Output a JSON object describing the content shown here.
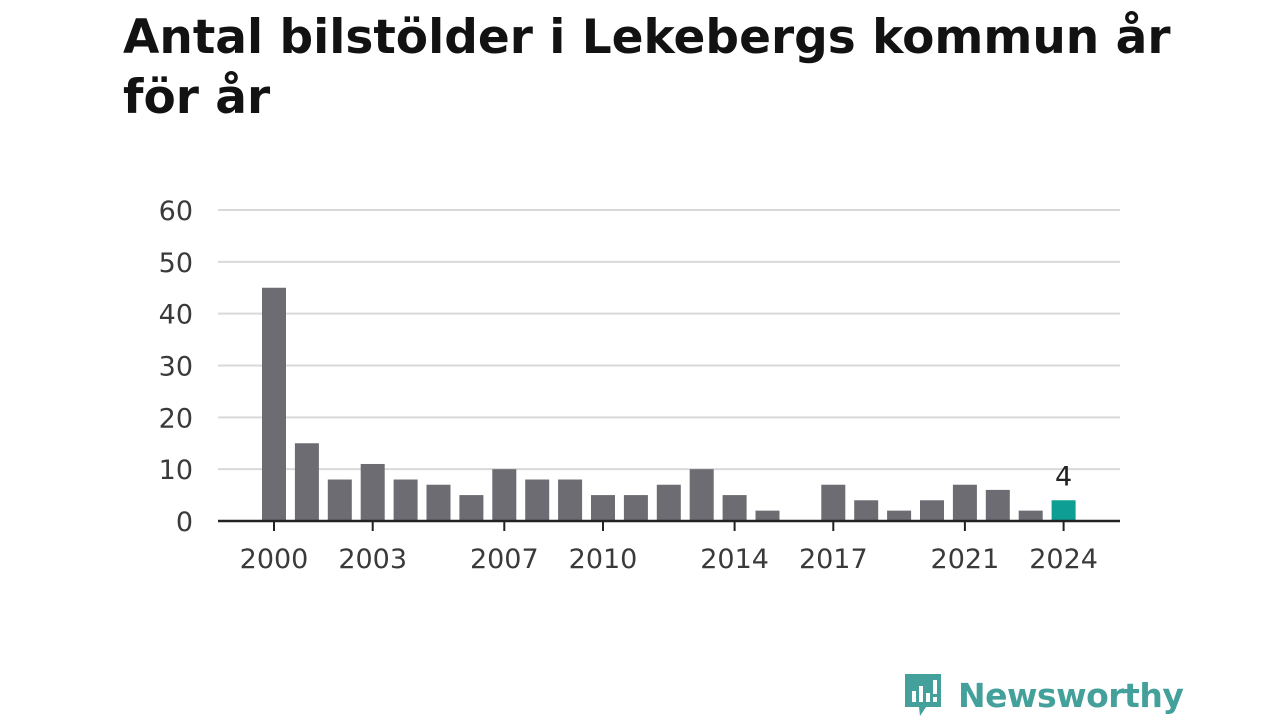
{
  "title": "Antal bilstölder i Lekebergs kommun år för år",
  "brand": {
    "name": "Newsworthy",
    "icon": "newsworthy-logo-icon",
    "color": "#44a09a"
  },
  "colors": {
    "bar": "#6d6c72",
    "highlight": "#0e9e94",
    "grid": "#d9d9d9",
    "axis": "#222222"
  },
  "chart_data": {
    "type": "bar",
    "title": "Antal bilstölder i Lekebergs kommun år för år",
    "xlabel": "",
    "ylabel": "",
    "categories": [
      "2000",
      "2001",
      "2002",
      "2003",
      "2004",
      "2005",
      "2006",
      "2007",
      "2008",
      "2009",
      "2010",
      "2011",
      "2012",
      "2013",
      "2014",
      "2015",
      "2016",
      "2017",
      "2018",
      "2019",
      "2020",
      "2021",
      "2022",
      "2023",
      "2024"
    ],
    "values": [
      45,
      15,
      8,
      11,
      8,
      7,
      5,
      10,
      8,
      8,
      5,
      5,
      7,
      10,
      5,
      2,
      0,
      7,
      4,
      2,
      4,
      7,
      6,
      2,
      4
    ],
    "ylim": [
      0,
      60
    ],
    "yticks": [
      0,
      10,
      20,
      30,
      40,
      50,
      60
    ],
    "xtick_labels": [
      "2000",
      "2003",
      "2007",
      "2010",
      "2014",
      "2017",
      "2021",
      "2024"
    ],
    "highlight": {
      "category": "2024",
      "label": "4"
    },
    "grid": true,
    "legend": "none"
  }
}
